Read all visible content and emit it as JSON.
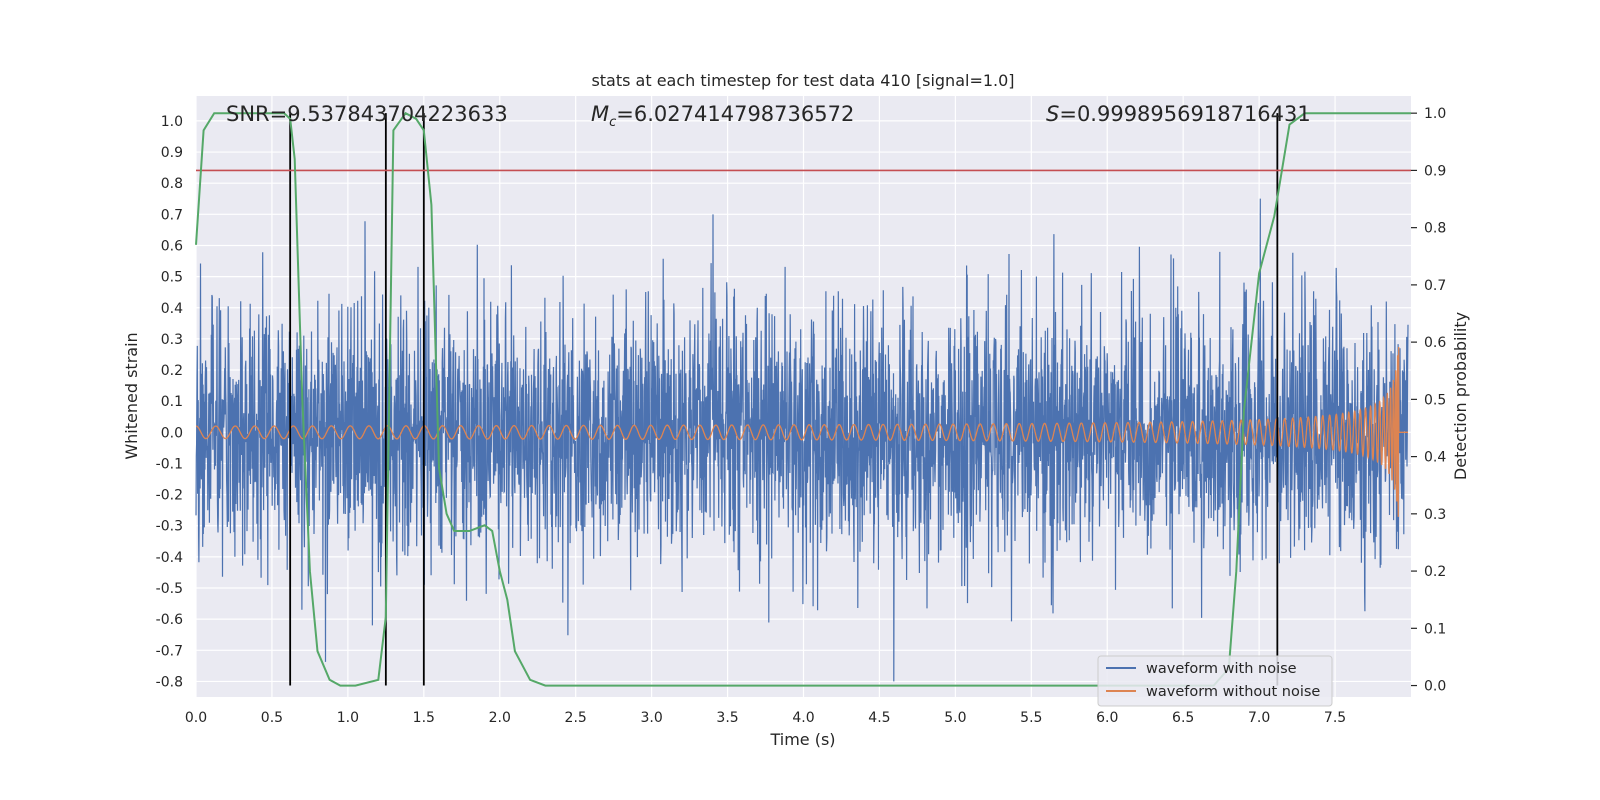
{
  "chart_data": {
    "type": "line",
    "title": "stats at each timestep for test data 410 [signal=1.0]",
    "xlabel": "Time (s)",
    "ylabel": "Whitened strain",
    "ylabel_right": "Detection probability",
    "xlim": [
      0.0,
      8.0
    ],
    "ylim": [
      -0.85,
      1.08
    ],
    "ylim_right": [
      -0.02,
      1.03
    ],
    "x_ticks": [
      "0.0",
      "0.5",
      "1.0",
      "1.5",
      "2.0",
      "2.5",
      "3.0",
      "3.5",
      "4.0",
      "4.5",
      "5.0",
      "5.5",
      "6.0",
      "6.5",
      "7.0",
      "7.5"
    ],
    "y_ticks": [
      "1.0",
      "0.9",
      "0.8",
      "0.7",
      "0.6",
      "0.5",
      "0.4",
      "0.3",
      "0.2",
      "0.1",
      "0.0",
      "-0.1",
      "-0.2",
      "-0.3",
      "-0.4",
      "-0.5",
      "-0.6",
      "-0.7",
      "-0.8"
    ],
    "y_right_ticks": [
      "1.0",
      "0.9",
      "0.8",
      "0.7",
      "0.6",
      "0.5",
      "0.4",
      "0.3",
      "0.2",
      "0.1",
      "0.0"
    ],
    "grid": true,
    "legend_position": "bottom-right",
    "annotations": {
      "snr": "SNR=9.537843704223633",
      "mc_symbol": "M",
      "mc_sub": "c",
      "mc_value": "=6.027414798736572",
      "s_symbol": "S",
      "s_value": "=0.9998956918716431"
    },
    "threshold": 0.9,
    "vertical_lines": [
      0.62,
      1.25,
      1.5,
      7.12
    ],
    "series": [
      {
        "name": "waveform with noise",
        "color": "#4c72b0",
        "style": "noise",
        "approx_amplitude": 0.45
      },
      {
        "name": "waveform without noise",
        "color": "#dd8452",
        "style": "chirp",
        "merger_time": 7.92,
        "peak_amplitude": 0.29
      },
      {
        "color": "#55a868",
        "x": [
          0.0,
          0.05,
          0.12,
          0.2,
          0.3,
          0.5,
          0.58,
          0.62,
          0.65,
          0.7,
          0.75,
          0.8,
          0.88,
          0.95,
          1.05,
          1.2,
          1.25,
          1.3,
          1.38,
          1.45,
          1.5,
          1.55,
          1.6,
          1.65,
          1.7,
          1.8,
          1.9,
          1.95,
          2.0,
          2.05,
          2.1,
          2.2,
          2.3,
          3.0,
          4.0,
          5.0,
          6.0,
          6.5,
          6.7,
          6.8,
          6.85,
          6.9,
          7.0,
          7.1,
          7.15,
          7.2,
          7.3,
          7.5,
          7.75,
          8.0
        ],
        "values": [
          0.77,
          0.97,
          1.0,
          1.0,
          1.0,
          1.0,
          1.0,
          0.99,
          0.92,
          0.5,
          0.2,
          0.06,
          0.01,
          0.0,
          0.0,
          0.01,
          0.12,
          0.97,
          1.0,
          0.99,
          0.97,
          0.84,
          0.38,
          0.3,
          0.27,
          0.27,
          0.28,
          0.27,
          0.2,
          0.15,
          0.06,
          0.01,
          0.0,
          0.0,
          0.0,
          0.0,
          0.0,
          0.0,
          0.0,
          0.03,
          0.2,
          0.48,
          0.72,
          0.82,
          0.9,
          0.98,
          1.0,
          1.0,
          1.0,
          1.0
        ]
      }
    ]
  }
}
